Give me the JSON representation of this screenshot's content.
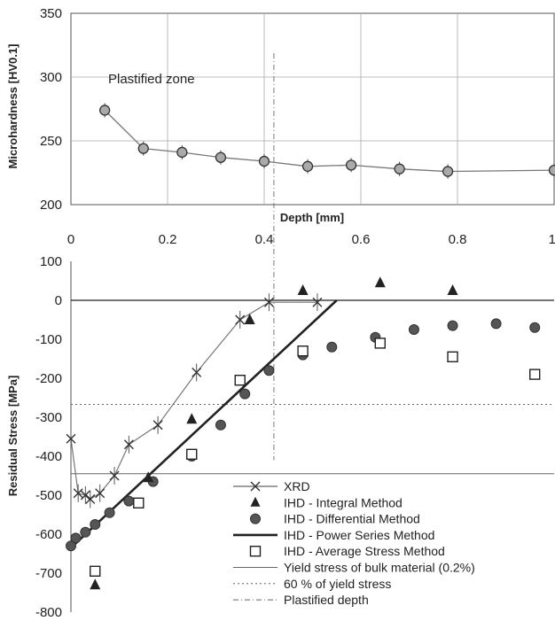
{
  "chart_data": [
    {
      "type": "line",
      "xlabel": "Depth [mm]",
      "ylabel": "Microhardness [HV0.1]",
      "xlim": [
        0,
        1
      ],
      "ylim": [
        200,
        350
      ],
      "x_ticks": [
        "0",
        "0.2",
        "0.4",
        "0.6",
        "0.8",
        "1"
      ],
      "y_ticks": [
        "200",
        "250",
        "300",
        "350"
      ],
      "grid": true,
      "annotations": [
        {
          "text": "Plastified zone"
        }
      ],
      "series": [
        {
          "x": [
            0.07,
            0.15,
            0.23,
            0.31,
            0.4,
            0.49,
            0.58,
            0.68,
            0.78,
            1.0
          ],
          "y": [
            274,
            244,
            241,
            237,
            234,
            230,
            231,
            228,
            226,
            227
          ]
        }
      ]
    },
    {
      "type": "scatter",
      "ylabel": "Residual Stress [MPa]",
      "xlim": [
        0,
        1
      ],
      "ylim": [
        -800,
        100
      ],
      "y_ticks": [
        "100",
        "0",
        "-100",
        "-200",
        "-300",
        "-400",
        "-500",
        "-600",
        "-700",
        "-800"
      ],
      "grid": true,
      "legend": "bottom-right",
      "series": [
        {
          "name": "XRD",
          "marker": "x",
          "x": [
            0,
            0.015,
            0.03,
            0.04,
            0.06,
            0.09,
            0.12,
            0.18,
            0.26,
            0.35,
            0.41,
            0.51
          ],
          "y": [
            -355,
            -495,
            -500,
            -510,
            -495,
            -450,
            -370,
            -320,
            -185,
            -50,
            -5,
            -5
          ]
        },
        {
          "name": "IHD - Integral Method",
          "marker": "triangle",
          "x": [
            0.05,
            0.16,
            0.25,
            0.37,
            0.48,
            0.64,
            0.79
          ],
          "y": [
            -730,
            -455,
            -305,
            -50,
            25,
            45,
            25
          ]
        },
        {
          "name": "IHD - Differential Method",
          "marker": "circle",
          "x": [
            0,
            0.01,
            0.03,
            0.05,
            0.08,
            0.12,
            0.17,
            0.25,
            0.31,
            0.36,
            0.41,
            0.48,
            0.54,
            0.63,
            0.71,
            0.79,
            0.88,
            0.96
          ],
          "y": [
            -630,
            -610,
            -595,
            -575,
            -545,
            -515,
            -465,
            -400,
            -320,
            -240,
            -180,
            -140,
            -120,
            -95,
            -75,
            -65,
            -60,
            -70
          ]
        },
        {
          "name": "IHD - Power Series Method",
          "marker": "line",
          "x": [
            0,
            0.55
          ],
          "y": [
            -635,
            0
          ]
        },
        {
          "name": "IHD - Average Stress Method",
          "marker": "square",
          "x": [
            0.05,
            0.14,
            0.25,
            0.35,
            0.48,
            0.64,
            0.79,
            0.96
          ],
          "y": [
            -695,
            -520,
            -395,
            -205,
            -130,
            -110,
            -145,
            -190
          ]
        },
        {
          "name": "Yield stress of bulk material (0.2%)",
          "marker": "thin-line",
          "y_value": -445
        },
        {
          "name": "60 % of yield stress",
          "marker": "dotted-line",
          "y_value": -267
        },
        {
          "name": "Plastified depth",
          "marker": "dash-dot-line",
          "x_value": 0.42
        }
      ]
    }
  ]
}
